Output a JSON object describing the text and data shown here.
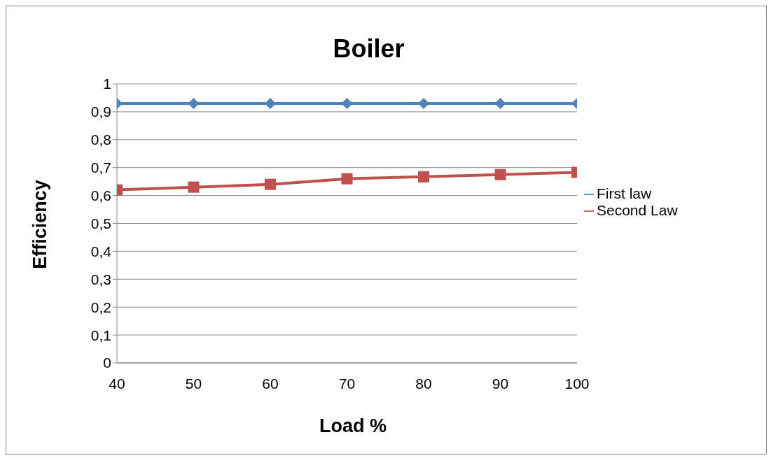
{
  "chart_data": {
    "type": "line",
    "title": "Boiler",
    "xlabel": "Load %",
    "ylabel": "Efficiency",
    "categories": [
      "40",
      "50",
      "60",
      "70",
      "80",
      "90",
      "100"
    ],
    "series": [
      {
        "name": "First law",
        "color": "#4f81bd",
        "marker": "diamond",
        "values": [
          0.93,
          0.93,
          0.93,
          0.93,
          0.93,
          0.93,
          0.93
        ]
      },
      {
        "name": "Second Law",
        "color": "#c0504d",
        "marker": "square",
        "values": [
          0.62,
          0.63,
          0.64,
          0.66,
          0.667,
          0.675,
          0.683
        ]
      }
    ],
    "ylim": [
      0,
      1
    ],
    "yticks": [
      0,
      {
        "value": 0.1,
        "label": "0,1"
      },
      {
        "value": 0.2,
        "label": "0,2"
      },
      {
        "value": 0.3,
        "label": "0,3"
      },
      {
        "value": 0.4,
        "label": "0,4"
      },
      {
        "value": 0.5,
        "label": "0,5"
      },
      {
        "value": 0.6,
        "label": "0,6"
      },
      {
        "value": 0.7,
        "label": "0,7"
      },
      {
        "value": 0.8,
        "label": "0,8"
      },
      {
        "value": 0.9,
        "label": "0,9"
      },
      1
    ],
    "grid": "y",
    "legend": "right",
    "line_style": "solid"
  }
}
